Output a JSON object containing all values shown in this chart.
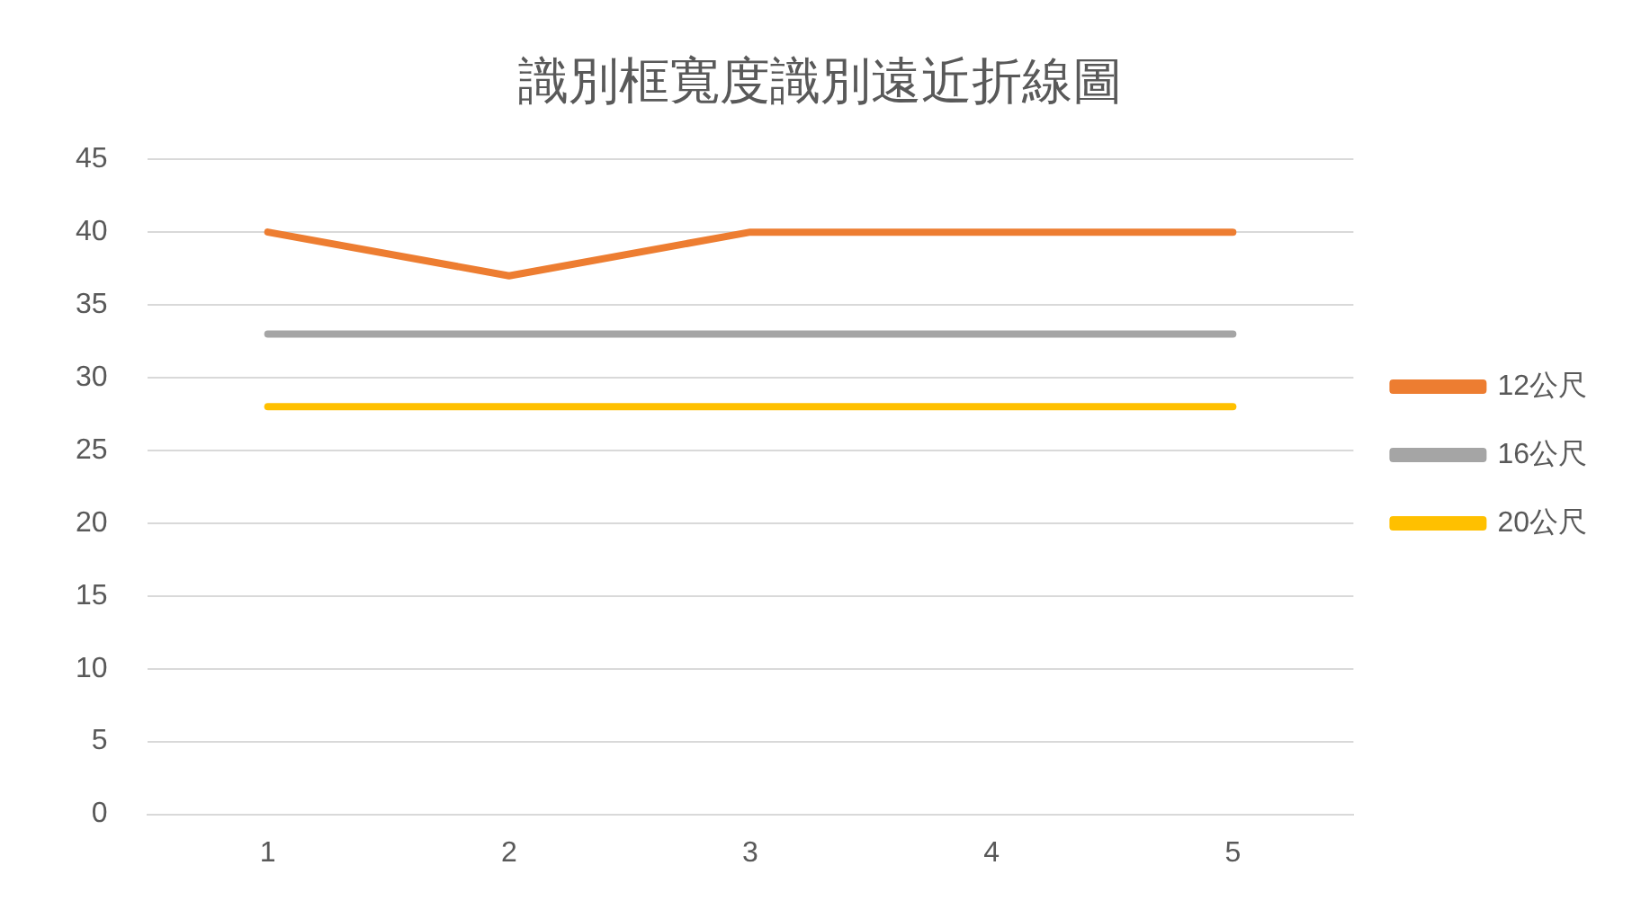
{
  "chart_data": {
    "type": "line",
    "title": "識別框寬度識別遠近折線圖",
    "categories": [
      "1",
      "2",
      "3",
      "4",
      "5"
    ],
    "series": [
      {
        "name": "12公尺",
        "color": "#ed7d31",
        "values": [
          40,
          37,
          40,
          40,
          40
        ]
      },
      {
        "name": "16公尺",
        "color": "#a5a5a5",
        "values": [
          33,
          33,
          33,
          33,
          33
        ]
      },
      {
        "name": "20公尺",
        "color": "#ffc000",
        "values": [
          28,
          28,
          28,
          28,
          28
        ]
      }
    ],
    "ylim": [
      0,
      45
    ],
    "yticks": [
      0,
      5,
      10,
      15,
      20,
      25,
      30,
      35,
      40,
      45
    ],
    "grid": "y",
    "legend": "right",
    "marker": "none",
    "line_style": "solid"
  }
}
